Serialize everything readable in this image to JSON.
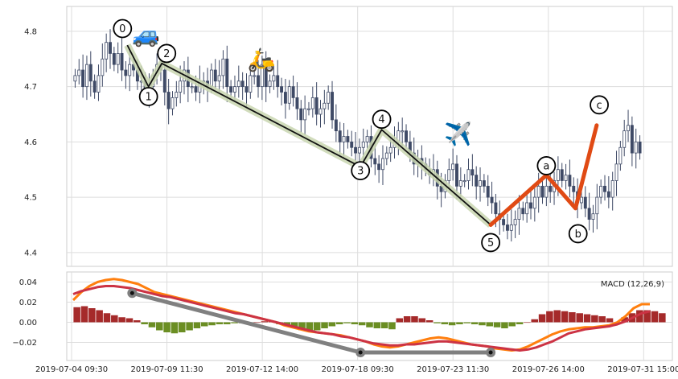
{
  "chart_data": [
    {
      "type": "candlestick",
      "title": "",
      "xlabel": "",
      "ylabel": "",
      "ylim": [
        4.375,
        4.845
      ],
      "yticks": [
        "4.4",
        "4.5",
        "4.6",
        "4.7",
        "4.8"
      ],
      "grid": true,
      "candle_colors": {
        "up": "#ffffff",
        "down": "#3f4a66",
        "outline": "#3f4a66"
      },
      "closes": [
        4.72,
        4.73,
        4.7,
        4.74,
        4.71,
        4.69,
        4.72,
        4.75,
        4.78,
        4.76,
        4.74,
        4.76,
        4.73,
        4.72,
        4.74,
        4.73,
        4.71,
        4.71,
        4.69,
        4.7,
        4.72,
        4.74,
        4.73,
        4.69,
        4.66,
        4.68,
        4.69,
        4.71,
        4.73,
        4.7,
        4.7,
        4.69,
        4.71,
        4.71,
        4.7,
        4.73,
        4.71,
        4.72,
        4.75,
        4.7,
        4.69,
        4.7,
        4.71,
        4.7,
        4.69,
        4.72,
        4.72,
        4.7,
        4.74,
        4.7,
        4.71,
        4.72,
        4.7,
        4.69,
        4.67,
        4.7,
        4.68,
        4.66,
        4.64,
        4.66,
        4.66,
        4.68,
        4.65,
        4.66,
        4.67,
        4.69,
        4.64,
        4.62,
        4.6,
        4.61,
        4.6,
        4.59,
        4.58,
        4.59,
        4.6,
        4.61,
        4.57,
        4.56,
        4.55,
        4.57,
        4.58,
        4.59,
        4.6,
        4.62,
        4.62,
        4.6,
        4.58,
        4.56,
        4.57,
        4.56,
        4.55,
        4.54,
        4.55,
        4.52,
        4.51,
        4.53,
        4.55,
        4.56,
        4.52,
        4.53,
        4.53,
        4.55,
        4.54,
        4.52,
        4.53,
        4.52,
        4.5,
        4.49,
        4.47,
        4.46,
        4.45,
        4.44,
        4.45,
        4.46,
        4.48,
        4.47,
        4.49,
        4.48,
        4.5,
        4.52,
        4.5,
        4.52,
        4.51,
        4.53,
        4.55,
        4.53,
        4.54,
        4.52,
        4.51,
        4.49,
        4.5,
        4.48,
        4.46,
        4.47,
        4.5,
        4.52,
        4.51,
        4.5,
        4.53,
        4.56,
        4.59,
        4.62,
        4.63,
        4.58,
        4.6,
        4.58
      ],
      "waves": [
        {
          "label": "0",
          "at": 0.1,
          "value": 4.775
        },
        {
          "label": "1",
          "at": 0.135,
          "value": 4.7
        },
        {
          "label": "2",
          "at": 0.157,
          "value": 4.742
        },
        {
          "label": "3",
          "at": 0.485,
          "value": 4.555
        },
        {
          "label": "4",
          "at": 0.52,
          "value": 4.622
        },
        {
          "label": "5",
          "at": 0.7,
          "value": 4.45
        },
        {
          "label": "a",
          "at": 0.792,
          "value": 4.54
        },
        {
          "label": "b",
          "at": 0.84,
          "value": 4.48
        },
        {
          "label": "c",
          "at": 0.875,
          "value": 4.63
        }
      ],
      "wave_label_values": {
        "0": 4.805,
        "1": 4.682,
        "2": 4.76,
        "3": 4.548,
        "4": 4.641,
        "5": 4.418,
        "a": 4.557,
        "b": 4.434,
        "c": 4.667
      },
      "impulse_color": "#111111",
      "impulse_band_color": "#c9d6b0",
      "correction_color": "#e04a14",
      "icons": [
        {
          "name": "car-icon",
          "glyph": "🚙",
          "at": 0.11,
          "value": 4.795
        },
        {
          "name": "scooter-icon",
          "glyph": "🛵",
          "at": 0.3,
          "value": 4.75
        },
        {
          "name": "airplane-icon",
          "glyph": "✈️",
          "at": 0.625,
          "value": 4.615
        }
      ]
    },
    {
      "type": "macd",
      "indicator_label": "MACD (12,26,9)",
      "ylim": [
        -0.038,
        0.05
      ],
      "yticks": [
        "0.04",
        "0.02",
        "0.00",
        "−0.02"
      ],
      "xticks": [
        "2019-07-04 09:30",
        "2019-07-09 11:30",
        "2019-07-12 14:00",
        "2019-07-18 09:30",
        "2019-07-23 11:30",
        "2019-07-26 14:00",
        "2019-07-31 15:00"
      ],
      "macd_color": "#ff7f0e",
      "signal_color": "#cc3344",
      "hist_up_color": "#a52a2a",
      "hist_down_color": "#6b8e23",
      "macd": [
        0.022,
        0.03,
        0.036,
        0.04,
        0.042,
        0.043,
        0.042,
        0.04,
        0.038,
        0.034,
        0.03,
        0.028,
        0.026,
        0.024,
        0.022,
        0.02,
        0.018,
        0.016,
        0.014,
        0.012,
        0.01,
        0.008,
        0.006,
        0.004,
        0.002,
        0.0,
        -0.003,
        -0.005,
        -0.007,
        -0.009,
        -0.01,
        -0.011,
        -0.012,
        -0.013,
        -0.015,
        -0.017,
        -0.019,
        -0.022,
        -0.024,
        -0.025,
        -0.024,
        -0.022,
        -0.02,
        -0.018,
        -0.016,
        -0.015,
        -0.016,
        -0.018,
        -0.02,
        -0.022,
        -0.023,
        -0.024,
        -0.026,
        -0.027,
        -0.028,
        -0.027,
        -0.024,
        -0.02,
        -0.016,
        -0.012,
        -0.009,
        -0.007,
        -0.006,
        -0.005,
        -0.005,
        -0.004,
        -0.003,
        0.0,
        0.006,
        0.014,
        0.018,
        0.018
      ],
      "signal": [
        0.028,
        0.031,
        0.033,
        0.035,
        0.036,
        0.036,
        0.035,
        0.034,
        0.032,
        0.03,
        0.028,
        0.026,
        0.025,
        0.023,
        0.021,
        0.019,
        0.017,
        0.015,
        0.013,
        0.011,
        0.009,
        0.008,
        0.006,
        0.004,
        0.002,
        0.0,
        -0.002,
        -0.004,
        -0.006,
        -0.008,
        -0.01,
        -0.011,
        -0.012,
        -0.014,
        -0.015,
        -0.017,
        -0.019,
        -0.021,
        -0.022,
        -0.023,
        -0.023,
        -0.022,
        -0.022,
        -0.021,
        -0.02,
        -0.019,
        -0.019,
        -0.02,
        -0.021,
        -0.022,
        -0.023,
        -0.024,
        -0.025,
        -0.026,
        -0.027,
        -0.028,
        -0.027,
        -0.025,
        -0.022,
        -0.019,
        -0.015,
        -0.011,
        -0.009,
        -0.007,
        -0.006,
        -0.005,
        -0.004,
        -0.002,
        0.001,
        0.005,
        0.009,
        0.011
      ],
      "histogram": [
        0.015,
        0.016,
        0.014,
        0.012,
        0.009,
        0.007,
        0.005,
        0.004,
        0.002,
        -0.002,
        -0.005,
        -0.008,
        -0.01,
        -0.011,
        -0.01,
        -0.008,
        -0.006,
        -0.004,
        -0.003,
        -0.002,
        -0.002,
        -0.001,
        -0.001,
        -0.001,
        0.0,
        0.001,
        0.001,
        -0.002,
        -0.004,
        -0.006,
        -0.008,
        -0.009,
        -0.008,
        -0.006,
        -0.004,
        -0.002,
        -0.001,
        -0.002,
        -0.003,
        -0.005,
        -0.006,
        -0.006,
        -0.007,
        0.004,
        0.006,
        0.006,
        0.004,
        0.002,
        -0.001,
        -0.002,
        -0.003,
        -0.002,
        -0.001,
        -0.002,
        -0.003,
        -0.004,
        -0.005,
        -0.006,
        -0.004,
        -0.002,
        0.0,
        0.003,
        0.008,
        0.011,
        0.012,
        0.011,
        0.01,
        0.009,
        0.008,
        0.007,
        0.006,
        0.004,
        -0.001,
        0.005,
        0.009,
        0.012,
        0.012,
        0.011,
        0.009
      ],
      "trendline": {
        "color": "#808080",
        "points": [
          {
            "at": 0.108,
            "value": 0.029
          },
          {
            "at": 0.485,
            "value": -0.03
          },
          {
            "at": 0.7,
            "value": -0.03
          }
        ]
      }
    }
  ]
}
